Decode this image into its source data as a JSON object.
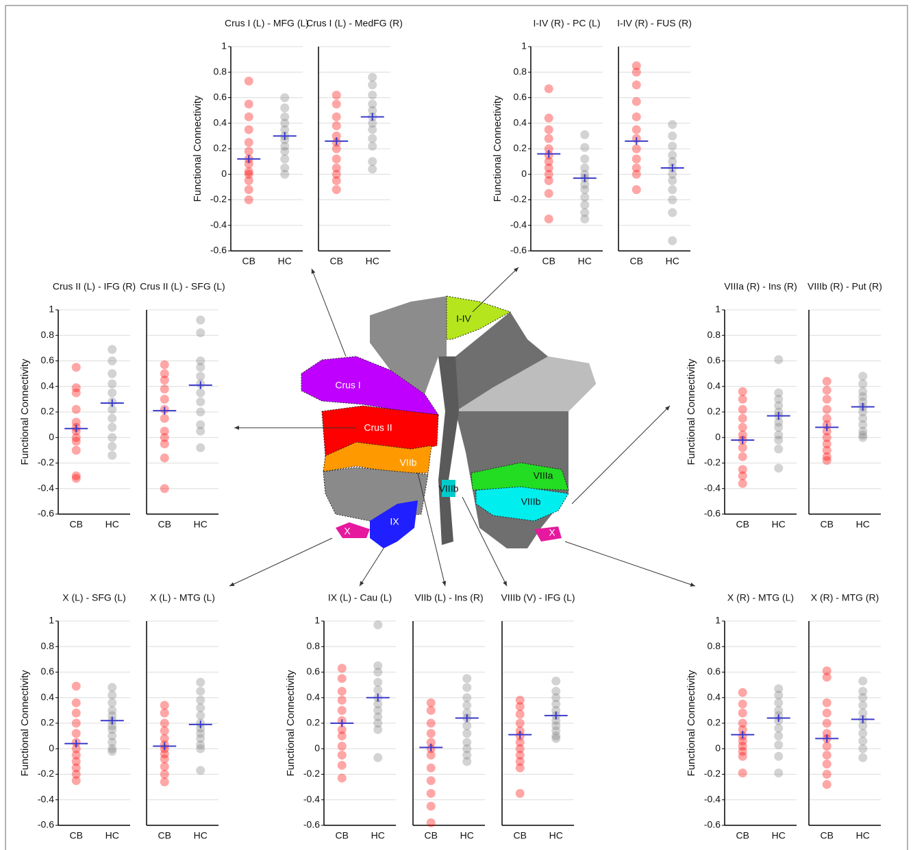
{
  "chart_data": [
    {
      "type": "strip",
      "title": "Crus I (L) - MFG (L)",
      "ylabel": "Functional Connectivity",
      "categories": [
        "CB",
        "HC"
      ],
      "ylim": [
        -0.6,
        1
      ],
      "yticks": [
        -0.6,
        -0.4,
        -0.2,
        0,
        0.2,
        0.4,
        0.6,
        0.8,
        1
      ],
      "series": [
        {
          "color": "#ff0000",
          "values": [
            0.73,
            0.55,
            0.45,
            0.35,
            0.25,
            0.18,
            0.12,
            0.08,
            0.02,
            0,
            -0.05,
            -0.12,
            -0.2
          ],
          "mean": 0.12,
          "error": 0.03
        },
        {
          "color": "#808080",
          "values": [
            0.6,
            0.52,
            0.45,
            0.4,
            0.35,
            0.3,
            0.27,
            0.22,
            0.18,
            0.12,
            0.05,
            0
          ],
          "mean": 0.3,
          "error": 0.03
        }
      ]
    },
    {
      "type": "strip",
      "title": "Crus I (L) - MedFG (R)",
      "categories": [
        "CB",
        "HC"
      ],
      "ylim": [
        -0.6,
        1
      ],
      "yticks": [
        -0.6,
        -0.4,
        -0.2,
        0,
        0.2,
        0.4,
        0.6,
        0.8,
        1
      ],
      "series": [
        {
          "color": "#ff0000",
          "values": [
            0.62,
            0.55,
            0.45,
            0.38,
            0.3,
            0.25,
            0.2,
            0.12,
            0.05,
            0,
            -0.05,
            -0.12
          ],
          "mean": 0.26,
          "error": 0.03
        },
        {
          "color": "#808080",
          "values": [
            0.76,
            0.7,
            0.62,
            0.55,
            0.5,
            0.45,
            0.4,
            0.35,
            0.28,
            0.22,
            0.1,
            0.04
          ],
          "mean": 0.45,
          "error": 0.03
        }
      ]
    },
    {
      "type": "strip",
      "title": "I-IV (R) - PC (L)",
      "ylabel": "Functional Connectivity",
      "categories": [
        "CB",
        "HC"
      ],
      "ylim": [
        -0.6,
        1
      ],
      "yticks": [
        -0.6,
        -0.4,
        -0.2,
        0,
        0.2,
        0.4,
        0.6,
        0.8,
        1
      ],
      "series": [
        {
          "color": "#ff0000",
          "values": [
            0.67,
            0.44,
            0.35,
            0.28,
            0.2,
            0.15,
            0.1,
            0.05,
            0,
            -0.05,
            -0.15,
            -0.35
          ],
          "mean": 0.16,
          "error": 0.03
        },
        {
          "color": "#808080",
          "values": [
            0.31,
            0.21,
            0.12,
            0.05,
            0,
            -0.03,
            -0.08,
            -0.12,
            -0.18,
            -0.24,
            -0.3,
            -0.35
          ],
          "mean": -0.03,
          "error": 0.03
        }
      ]
    },
    {
      "type": "strip",
      "title": "I-IV (R) - FUS (R)",
      "categories": [
        "CB",
        "HC"
      ],
      "ylim": [
        -0.6,
        1
      ],
      "yticks": [
        -0.6,
        -0.4,
        -0.2,
        0,
        0.2,
        0.4,
        0.6,
        0.8,
        1
      ],
      "series": [
        {
          "color": "#ff0000",
          "values": [
            0.85,
            0.8,
            0.7,
            0.57,
            0.45,
            0.35,
            0.28,
            0.2,
            0.12,
            0.05,
            0,
            -0.12
          ],
          "mean": 0.26,
          "error": 0.03
        },
        {
          "color": "#808080",
          "values": [
            0.39,
            0.3,
            0.22,
            0.15,
            0.1,
            0.05,
            0,
            -0.05,
            -0.12,
            -0.2,
            -0.3,
            -0.52
          ],
          "mean": 0.05,
          "error": 0.03
        }
      ]
    },
    {
      "type": "strip",
      "title": "Crus II (L) - IFG (R)",
      "ylabel": "Functional Connectivity",
      "categories": [
        "CB",
        "HC"
      ],
      "ylim": [
        -0.6,
        1
      ],
      "yticks": [
        -0.6,
        -0.4,
        -0.2,
        0,
        0.2,
        0.4,
        0.6,
        0.8,
        1
      ],
      "series": [
        {
          "color": "#ff0000",
          "values": [
            0.55,
            0.39,
            0.35,
            0.22,
            0.12,
            0.08,
            0.05,
            0,
            -0.03,
            -0.1,
            -0.3,
            -0.32
          ],
          "mean": 0.07,
          "error": 0.03
        },
        {
          "color": "#808080",
          "values": [
            0.69,
            0.6,
            0.5,
            0.42,
            0.35,
            0.28,
            0.22,
            0.15,
            0.08,
            0,
            -0.07,
            -0.14
          ],
          "mean": 0.27,
          "error": 0.03
        }
      ]
    },
    {
      "type": "strip",
      "title": "Crus II (L) - SFG (L)",
      "categories": [
        "CB",
        "HC"
      ],
      "ylim": [
        -0.6,
        1
      ],
      "yticks": [
        -0.6,
        -0.4,
        -0.2,
        0,
        0.2,
        0.4,
        0.6,
        0.8,
        1
      ],
      "series": [
        {
          "color": "#ff0000",
          "values": [
            0.57,
            0.5,
            0.45,
            0.38,
            0.3,
            0.22,
            0.15,
            0.05,
            0,
            -0.05,
            -0.16,
            -0.4
          ],
          "mean": 0.21,
          "error": 0.03
        },
        {
          "color": "#808080",
          "values": [
            0.92,
            0.82,
            0.6,
            0.55,
            0.48,
            0.42,
            0.35,
            0.28,
            0.2,
            0.1,
            0.05,
            -0.08
          ],
          "mean": 0.41,
          "error": 0.03
        }
      ]
    },
    {
      "type": "strip",
      "title": "VIIIa (R) - Ins (R)",
      "ylabel": "Functional Connectivity",
      "categories": [
        "CB",
        "HC"
      ],
      "ylim": [
        -0.6,
        1
      ],
      "yticks": [
        -0.6,
        -0.4,
        -0.2,
        0,
        0.2,
        0.4,
        0.6,
        0.8,
        1
      ],
      "series": [
        {
          "color": "#ff0000",
          "values": [
            0.36,
            0.3,
            0.22,
            0.15,
            0.08,
            0.02,
            -0.02,
            -0.08,
            -0.15,
            -0.25,
            -0.3,
            -0.36
          ],
          "mean": -0.02,
          "error": 0.03
        },
        {
          "color": "#808080",
          "values": [
            0.61,
            0.35,
            0.3,
            0.25,
            0.2,
            0.17,
            0.12,
            0.08,
            0.02,
            -0.02,
            -0.09,
            -0.24
          ],
          "mean": 0.17,
          "error": 0.03
        }
      ]
    },
    {
      "type": "strip",
      "title": "VIIIb (R) - Put (R)",
      "categories": [
        "CB",
        "HC"
      ],
      "ylim": [
        -0.6,
        1
      ],
      "yticks": [
        -0.6,
        -0.4,
        -0.2,
        0,
        0.2,
        0.4,
        0.6,
        0.8,
        1
      ],
      "series": [
        {
          "color": "#ff0000",
          "values": [
            0.44,
            0.37,
            0.3,
            0.22,
            0.15,
            0.1,
            0.05,
            0,
            -0.05,
            -0.1,
            -0.15,
            -0.18
          ],
          "mean": 0.08,
          "error": 0.03
        },
        {
          "color": "#808080",
          "values": [
            0.48,
            0.42,
            0.36,
            0.32,
            0.28,
            0.24,
            0.2,
            0.15,
            0.1,
            0.05,
            0.02,
            0
          ],
          "mean": 0.24,
          "error": 0.03
        }
      ]
    },
    {
      "type": "strip",
      "title": "X (L) - SFG (L)",
      "ylabel": "Functional Connectivity",
      "categories": [
        "CB",
        "HC"
      ],
      "ylim": [
        -0.6,
        1
      ],
      "yticks": [
        -0.6,
        -0.4,
        -0.2,
        0,
        0.2,
        0.4,
        0.6,
        0.8,
        1
      ],
      "series": [
        {
          "color": "#ff0000",
          "values": [
            0.49,
            0.36,
            0.28,
            0.2,
            0.12,
            0.05,
            0,
            -0.05,
            -0.1,
            -0.15,
            -0.2,
            -0.25
          ],
          "mean": 0.04,
          "error": 0.03
        },
        {
          "color": "#808080",
          "values": [
            0.48,
            0.42,
            0.36,
            0.3,
            0.26,
            0.22,
            0.18,
            0.15,
            0.1,
            0.05,
            0,
            -0.02
          ],
          "mean": 0.22,
          "error": 0.03
        }
      ]
    },
    {
      "type": "strip",
      "title": "X (L) - MTG (L)",
      "categories": [
        "CB",
        "HC"
      ],
      "ylim": [
        -0.6,
        1
      ],
      "yticks": [
        -0.6,
        -0.4,
        -0.2,
        0,
        0.2,
        0.4,
        0.6,
        0.8,
        1
      ],
      "series": [
        {
          "color": "#ff0000",
          "values": [
            0.34,
            0.28,
            0.2,
            0.14,
            0.08,
            0.03,
            0,
            -0.04,
            -0.08,
            -0.14,
            -0.2,
            -0.26
          ],
          "mean": 0.02,
          "error": 0.03
        },
        {
          "color": "#808080",
          "values": [
            0.52,
            0.45,
            0.38,
            0.32,
            0.26,
            0.2,
            0.16,
            0.12,
            0.08,
            0.03,
            0,
            -0.17
          ],
          "mean": 0.19,
          "error": 0.03
        }
      ]
    },
    {
      "type": "strip",
      "title": "IX (L) - Cau (L)",
      "ylabel": "Functional Connectivity",
      "categories": [
        "CB",
        "HC"
      ],
      "ylim": [
        -0.6,
        1
      ],
      "yticks": [
        -0.6,
        -0.4,
        -0.2,
        0,
        0.2,
        0.4,
        0.6,
        0.8,
        1
      ],
      "series": [
        {
          "color": "#ff0000",
          "values": [
            0.63,
            0.55,
            0.45,
            0.38,
            0.3,
            0.22,
            0.15,
            0.1,
            0.02,
            -0.05,
            -0.13,
            -0.23
          ],
          "mean": 0.2,
          "error": 0.03
        },
        {
          "color": "#808080",
          "values": [
            0.97,
            0.65,
            0.6,
            0.52,
            0.46,
            0.4,
            0.35,
            0.3,
            0.25,
            0.2,
            0.15,
            -0.07
          ],
          "mean": 0.4,
          "error": 0.03
        }
      ]
    },
    {
      "type": "strip",
      "title": "VIIb (L) - Ins (R)",
      "categories": [
        "CB",
        "HC"
      ],
      "ylim": [
        -0.6,
        1
      ],
      "yticks": [
        -0.6,
        -0.4,
        -0.2,
        0,
        0.2,
        0.4,
        0.6,
        0.8,
        1
      ],
      "series": [
        {
          "color": "#ff0000",
          "values": [
            0.36,
            0.3,
            0.2,
            0.12,
            0.05,
            0,
            -0.05,
            -0.15,
            -0.25,
            -0.35,
            -0.45,
            -0.58
          ],
          "mean": 0.01,
          "error": 0.03
        },
        {
          "color": "#808080",
          "values": [
            0.55,
            0.48,
            0.4,
            0.34,
            0.28,
            0.24,
            0.18,
            0.12,
            0.05,
            0,
            -0.05,
            -0.1
          ],
          "mean": 0.24,
          "error": 0.03
        }
      ]
    },
    {
      "type": "strip",
      "title": "VIIIb (V) - IFG (L)",
      "categories": [
        "CB",
        "HC"
      ],
      "ylim": [
        -0.6,
        1
      ],
      "yticks": [
        -0.6,
        -0.4,
        -0.2,
        0,
        0.2,
        0.4,
        0.6,
        0.8,
        1
      ],
      "series": [
        {
          "color": "#ff0000",
          "values": [
            0.38,
            0.33,
            0.27,
            0.2,
            0.14,
            0.1,
            0.05,
            0,
            -0.05,
            -0.1,
            -0.15,
            -0.35
          ],
          "mean": 0.11,
          "error": 0.03
        },
        {
          "color": "#808080",
          "values": [
            0.53,
            0.45,
            0.4,
            0.35,
            0.3,
            0.26,
            0.22,
            0.18,
            0.14,
            0.1,
            0.08
          ],
          "mean": 0.26,
          "error": 0.03
        }
      ]
    },
    {
      "type": "strip",
      "title": "X (R) - MTG (L)",
      "ylabel": "Functional Connectivity",
      "categories": [
        "CB",
        "HC"
      ],
      "ylim": [
        -0.6,
        1
      ],
      "yticks": [
        -0.6,
        -0.4,
        -0.2,
        0,
        0.2,
        0.4,
        0.6,
        0.8,
        1
      ],
      "series": [
        {
          "color": "#ff0000",
          "values": [
            0.44,
            0.35,
            0.28,
            0.2,
            0.15,
            0.1,
            0.06,
            0.02,
            -0.02,
            -0.06,
            -0.19
          ],
          "mean": 0.11,
          "error": 0.03
        },
        {
          "color": "#808080",
          "values": [
            0.47,
            0.42,
            0.36,
            0.3,
            0.26,
            0.22,
            0.16,
            0.1,
            0.03,
            -0.06,
            -0.19
          ],
          "mean": 0.24,
          "error": 0.03
        }
      ]
    },
    {
      "type": "strip",
      "title": "X (R) - MTG (R)",
      "categories": [
        "CB",
        "HC"
      ],
      "ylim": [
        -0.6,
        1
      ],
      "yticks": [
        -0.6,
        -0.4,
        -0.2,
        0,
        0.2,
        0.4,
        0.6,
        0.8,
        1
      ],
      "series": [
        {
          "color": "#ff0000",
          "values": [
            0.61,
            0.56,
            0.36,
            0.28,
            0.2,
            0.12,
            0.08,
            0.02,
            -0.05,
            -0.12,
            -0.2,
            -0.28
          ],
          "mean": 0.08,
          "error": 0.03
        },
        {
          "color": "#808080",
          "values": [
            0.53,
            0.45,
            0.4,
            0.34,
            0.28,
            0.23,
            0.18,
            0.12,
            0.06,
            0,
            -0.07
          ],
          "mean": 0.23,
          "error": 0.03
        }
      ]
    }
  ],
  "map": {
    "labels": [
      "I-IV",
      "Crus I",
      "Crus II",
      "VIIb",
      "VIIIa",
      "VIIIb",
      "VIIIb",
      "IX",
      "X",
      "X"
    ]
  }
}
